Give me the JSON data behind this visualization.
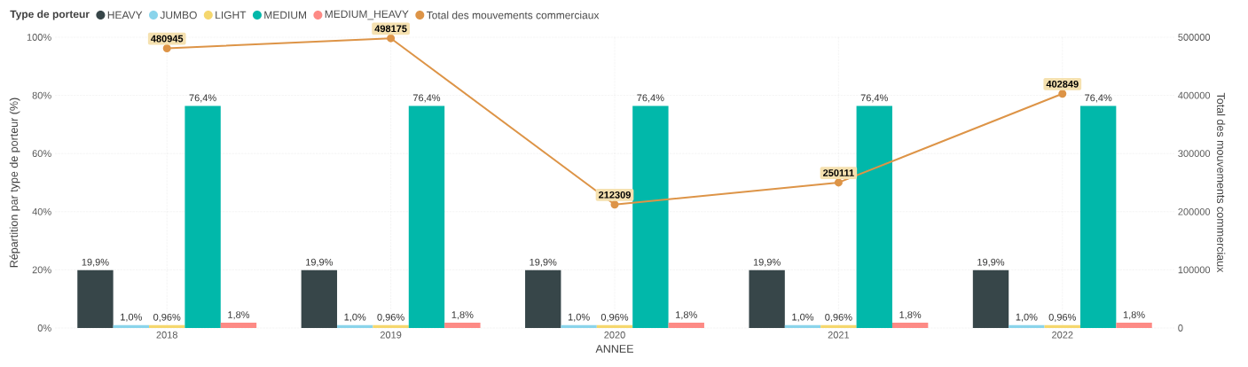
{
  "chart_data": {
    "type": "bar",
    "legend_title": "Type de porteur",
    "xlabel": "ANNEE",
    "ylabel": "Répartition par type de porteur (%)",
    "y2label": "Total des mouvements commerciaux",
    "categories": [
      "2018",
      "2019",
      "2020",
      "2021",
      "2022"
    ],
    "series": [
      {
        "name": "HEAVY",
        "color": "#374649",
        "values": [
          19.9,
          19.9,
          19.9,
          19.9,
          19.9
        ],
        "value_labels": [
          "19,9%",
          "19,9%",
          "19,9%",
          "19,9%",
          "19,9%"
        ]
      },
      {
        "name": "JUMBO",
        "color": "#8AD4EB",
        "values": [
          1.0,
          1.0,
          1.0,
          1.0,
          1.0
        ],
        "value_labels": [
          "1,0%",
          "1,0%",
          "1,0%",
          "1,0%",
          "1,0%"
        ]
      },
      {
        "name": "LIGHT",
        "color": "#F5D76E",
        "values": [
          0.96,
          0.96,
          0.96,
          0.96,
          0.96
        ],
        "value_labels": [
          "0,96%",
          "0,96%",
          "0,96%",
          "0,96%",
          "0,96%"
        ]
      },
      {
        "name": "MEDIUM",
        "color": "#01B8AA",
        "values": [
          76.4,
          76.4,
          76.4,
          76.4,
          76.4
        ],
        "value_labels": [
          "76,4%",
          "76,4%",
          "76,4%",
          "76,4%",
          "76,4%"
        ]
      },
      {
        "name": "MEDIUM_HEAVY",
        "color": "#FD8A85",
        "values": [
          1.8,
          1.8,
          1.8,
          1.8,
          1.8
        ],
        "value_labels": [
          "1,8%",
          "1,8%",
          "1,8%",
          "1,8%",
          "1,8%"
        ]
      },
      {
        "name": "Total des mouvements commerciaux",
        "type": "line",
        "axis": "y2",
        "marker": "circle",
        "color": "#DD9447",
        "values": [
          480945,
          498175,
          212309,
          250111,
          402849
        ],
        "value_labels": [
          "480945",
          "498175",
          "212309",
          "250111",
          "402849"
        ]
      }
    ],
    "ylim": [
      0,
      100
    ],
    "yticks": [
      {
        "value": 0,
        "label": "0%"
      },
      {
        "value": 20,
        "label": "20%"
      },
      {
        "value": 40,
        "label": "40%"
      },
      {
        "value": 60,
        "label": "60%"
      },
      {
        "value": 80,
        "label": "80%"
      },
      {
        "value": 100,
        "label": "100%"
      }
    ],
    "y2lim": [
      0,
      500000
    ],
    "y2ticks": [
      0,
      100000,
      200000,
      300000,
      400000,
      500000
    ],
    "grid": true,
    "legend": "top"
  }
}
